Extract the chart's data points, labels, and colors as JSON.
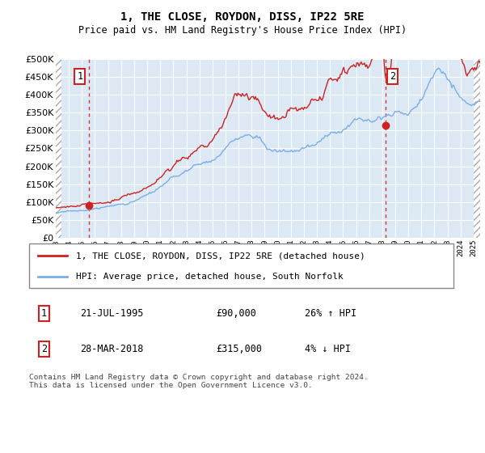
{
  "title": "1, THE CLOSE, ROYDON, DISS, IP22 5RE",
  "subtitle": "Price paid vs. HM Land Registry's House Price Index (HPI)",
  "ylim": [
    0,
    500000
  ],
  "yticks": [
    0,
    50000,
    100000,
    150000,
    200000,
    250000,
    300000,
    350000,
    400000,
    450000,
    500000
  ],
  "xlim_start": 1993.0,
  "xlim_end": 2025.5,
  "xticks": [
    1993,
    1994,
    1995,
    1996,
    1997,
    1998,
    1999,
    2000,
    2001,
    2002,
    2003,
    2004,
    2005,
    2006,
    2007,
    2008,
    2009,
    2010,
    2011,
    2012,
    2013,
    2014,
    2015,
    2016,
    2017,
    2018,
    2019,
    2020,
    2021,
    2022,
    2023,
    2024,
    2025
  ],
  "hpi_color": "#7aaee8",
  "price_color": "#cc2222",
  "sale1_x": 1995.55,
  "sale1_y": 90000,
  "sale2_x": 2018.24,
  "sale2_y": 315000,
  "legend_label1": "1, THE CLOSE, ROYDON, DISS, IP22 5RE (detached house)",
  "legend_label2": "HPI: Average price, detached house, South Norfolk",
  "annotation1_label": "1",
  "annotation1_date": "21-JUL-1995",
  "annotation1_price": "£90,000",
  "annotation1_hpi": "26% ↑ HPI",
  "annotation2_label": "2",
  "annotation2_date": "28-MAR-2018",
  "annotation2_price": "£315,000",
  "annotation2_hpi": "4% ↓ HPI",
  "footer": "Contains HM Land Registry data © Crown copyright and database right 2024.\nThis data is licensed under the Open Government Licence v3.0.",
  "bg_color": "#dce9f5",
  "grid_color": "#ffffff"
}
